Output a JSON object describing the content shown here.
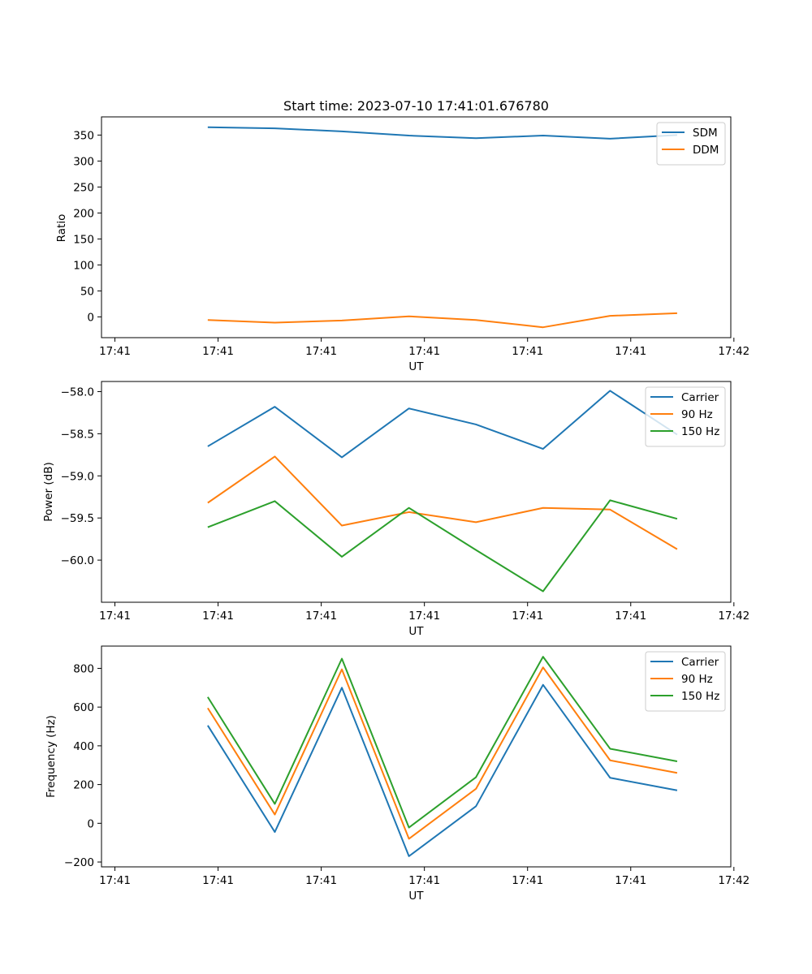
{
  "chart_data": [
    {
      "type": "line",
      "title": "Start time: 2023-07-10 17:41:01.676780",
      "xlabel": "UT",
      "ylabel": "Ratio",
      "x_seconds": [
        1.68,
        2.33,
        2.98,
        3.63,
        4.28,
        4.93,
        5.58,
        6.23
      ],
      "xlim": [
        0.65,
        6.75
      ],
      "xticks": [
        0.78,
        1.78,
        2.78,
        3.78,
        4.78,
        5.78,
        6.78
      ],
      "xtick_labels": [
        "17:41",
        "17:41",
        "17:41",
        "17:41",
        "17:41",
        "17:41",
        "17:42"
      ],
      "ylim": [
        -40,
        385
      ],
      "yticks": [
        0,
        50,
        100,
        150,
        200,
        250,
        300,
        350
      ],
      "ytick_labels": [
        "0",
        "50",
        "100",
        "150",
        "200",
        "250",
        "300",
        "350"
      ],
      "legend_position": "upper-right",
      "series": [
        {
          "name": "SDM",
          "color": "#1f77b4",
          "values": [
            365,
            363,
            357,
            349,
            344,
            349,
            343,
            350
          ]
        },
        {
          "name": "DDM",
          "color": "#ff7f0e",
          "values": [
            -6,
            -11,
            -7,
            1,
            -6,
            -20,
            2,
            7
          ]
        }
      ]
    },
    {
      "type": "line",
      "title": "",
      "xlabel": "UT",
      "ylabel": "Power (dB)",
      "x_seconds": [
        1.68,
        2.33,
        2.98,
        3.63,
        4.28,
        4.93,
        5.58,
        6.23
      ],
      "xlim": [
        0.65,
        6.75
      ],
      "xticks": [
        0.78,
        1.78,
        2.78,
        3.78,
        4.78,
        5.78,
        6.78
      ],
      "xtick_labels": [
        "17:41",
        "17:41",
        "17:41",
        "17:41",
        "17:41",
        "17:41",
        "17:42"
      ],
      "ylim": [
        -60.5,
        -57.88
      ],
      "yticks": [
        -60.0,
        -59.5,
        -59.0,
        -58.5,
        -58.0
      ],
      "ytick_labels": [
        "−60.0",
        "−59.5",
        "−59.0",
        "−58.5",
        "−58.0"
      ],
      "legend_position": "upper-right",
      "series": [
        {
          "name": "Carrier",
          "color": "#1f77b4",
          "values": [
            -58.65,
            -58.18,
            -58.78,
            -58.2,
            -58.39,
            -58.68,
            -57.99,
            -58.51
          ]
        },
        {
          "name": "90 Hz",
          "color": "#ff7f0e",
          "values": [
            -59.32,
            -58.77,
            -59.59,
            -59.43,
            -59.55,
            -59.38,
            -59.4,
            -59.87
          ]
        },
        {
          "name": "150 Hz",
          "color": "#2ca02c",
          "values": [
            -59.61,
            -59.3,
            -59.96,
            -59.38,
            -59.88,
            -60.37,
            -59.29,
            -59.51
          ]
        }
      ]
    },
    {
      "type": "line",
      "title": "",
      "xlabel": "UT",
      "ylabel": "Frequency (Hz)",
      "x_seconds": [
        1.68,
        2.33,
        2.98,
        3.63,
        4.28,
        4.93,
        5.58,
        6.23
      ],
      "xlim": [
        0.65,
        6.75
      ],
      "xticks": [
        0.78,
        1.78,
        2.78,
        3.78,
        4.78,
        5.78,
        6.78
      ],
      "xtick_labels": [
        "17:41",
        "17:41",
        "17:41",
        "17:41",
        "17:41",
        "17:41",
        "17:42"
      ],
      "ylim": [
        -225,
        915
      ],
      "yticks": [
        -200,
        0,
        200,
        400,
        600,
        800
      ],
      "ytick_labels": [
        "−200",
        "0",
        "200",
        "400",
        "600",
        "800"
      ],
      "legend_position": "upper-right",
      "series": [
        {
          "name": "Carrier",
          "color": "#1f77b4",
          "values": [
            505,
            -45,
            700,
            -170,
            88,
            715,
            235,
            170
          ]
        },
        {
          "name": "90 Hz",
          "color": "#ff7f0e",
          "values": [
            595,
            45,
            795,
            -80,
            178,
            805,
            325,
            260
          ]
        },
        {
          "name": "150 Hz",
          "color": "#2ca02c",
          "values": [
            652,
            100,
            850,
            -22,
            238,
            860,
            385,
            320
          ]
        }
      ]
    }
  ]
}
